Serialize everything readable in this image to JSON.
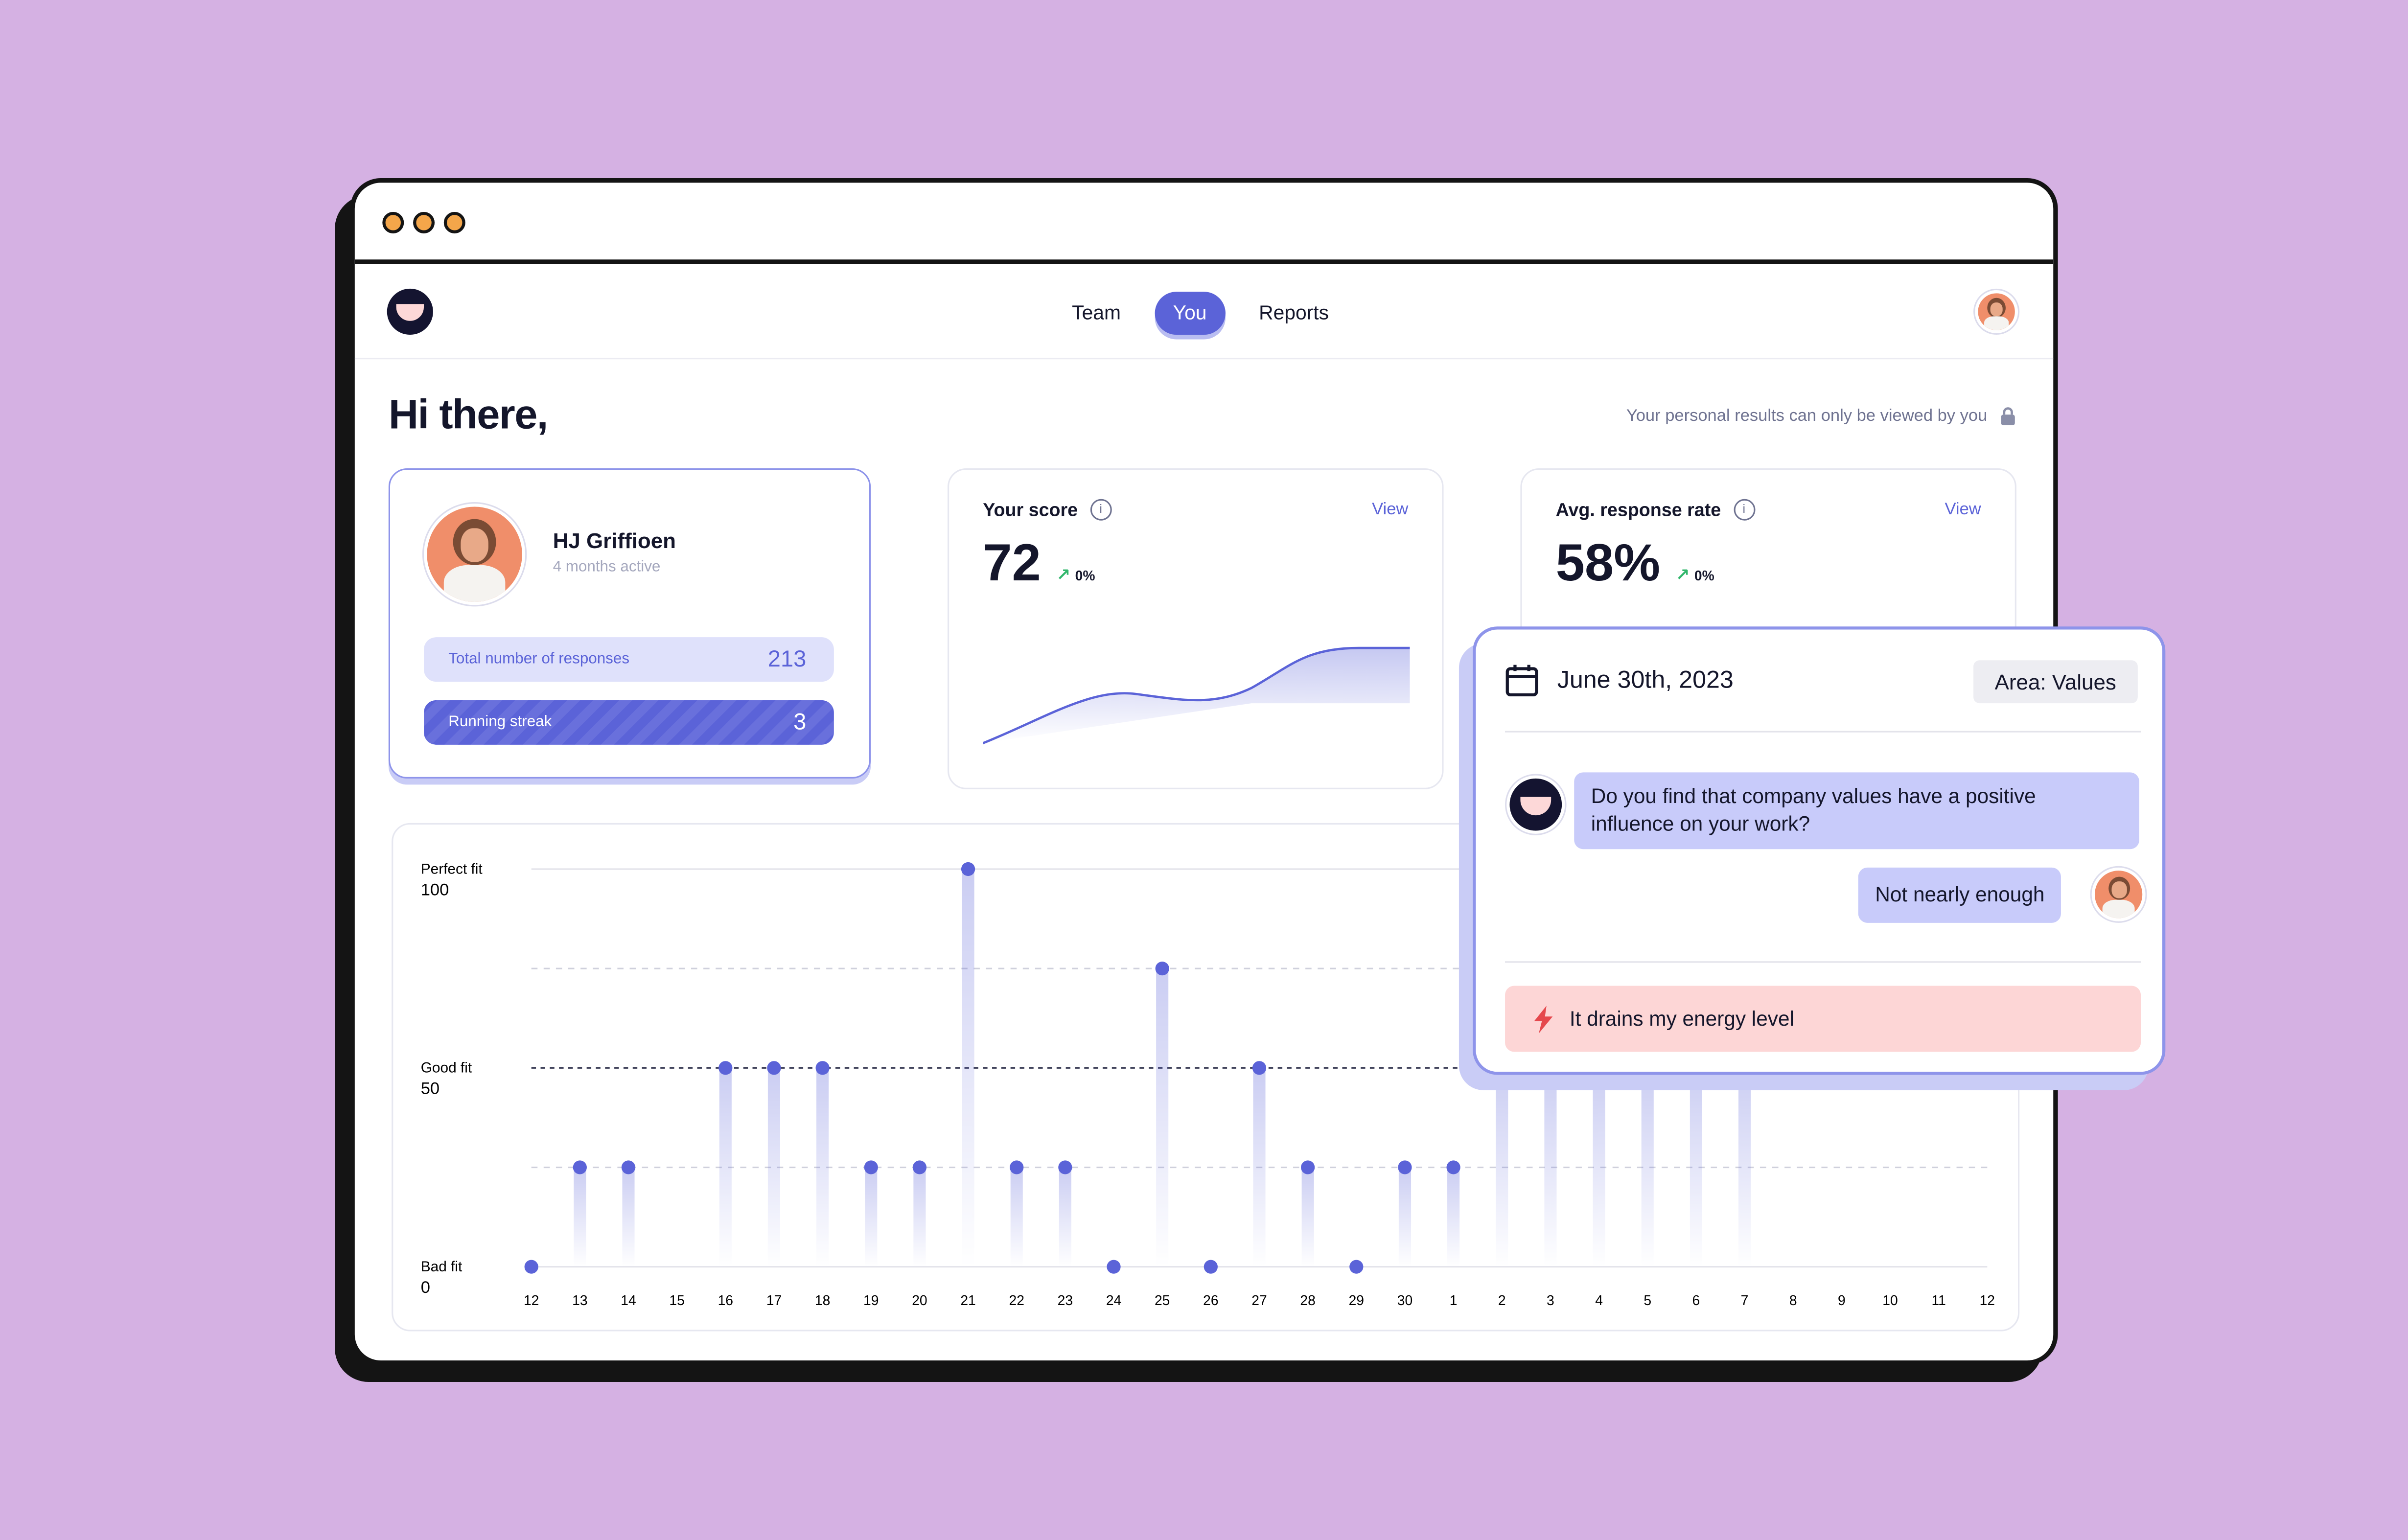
{
  "nav": {
    "tabs": [
      {
        "label": "Team",
        "active": false
      },
      {
        "label": "You",
        "active": true
      },
      {
        "label": "Reports",
        "active": false
      }
    ]
  },
  "header": {
    "greeting": "Hi there,",
    "privacy_note": "Your personal results can only be viewed by you",
    "privacy_icon": "lock-icon"
  },
  "profile": {
    "name": "HJ Griffioen",
    "subtitle": "4 months active",
    "stats": [
      {
        "label": "Total number of responses",
        "value": "213"
      },
      {
        "label": "Running streak",
        "value": "3"
      }
    ]
  },
  "score_card": {
    "label": "Your score",
    "view": "View",
    "value": "72",
    "delta": "0%"
  },
  "response_card": {
    "label": "Avg. response rate",
    "view": "View",
    "value": "58%",
    "delta": "0%"
  },
  "popup": {
    "date": "June 30th, 2023",
    "area": "Area: Values",
    "question": "Do you find that company values have a positive influence on your work?",
    "answer": "Not nearly enough",
    "feedback": "It drains my energy level",
    "feedback_icon": "lightning-icon"
  },
  "colors": {
    "accent": "#5b63d8",
    "accent_light": "#dfe1fb",
    "background": "#d5b1e3",
    "alert_bg": "#fdd6d6",
    "alert_icon": "#e5484d"
  },
  "chart_data": {
    "type": "bar",
    "y_labels": [
      {
        "label": "Perfect fit",
        "value": "100"
      },
      {
        "label": "Good fit",
        "value": "50"
      },
      {
        "label": "Bad fit",
        "value": "0"
      }
    ],
    "ylim": [
      0,
      100
    ],
    "categories": [
      "12",
      "13",
      "14",
      "15",
      "16",
      "17",
      "18",
      "19",
      "20",
      "21",
      "22",
      "23",
      "24",
      "25",
      "26",
      "27",
      "28",
      "29",
      "30",
      "1",
      "2",
      "3",
      "4",
      "5",
      "6",
      "7",
      "8",
      "9",
      "10",
      "11",
      "12"
    ],
    "values": [
      0,
      25,
      25,
      null,
      50,
      50,
      50,
      25,
      25,
      100,
      25,
      25,
      0,
      75,
      0,
      50,
      25,
      0,
      25,
      25,
      50,
      50,
      50,
      50,
      50,
      50,
      null,
      null,
      null,
      null,
      null
    ]
  }
}
